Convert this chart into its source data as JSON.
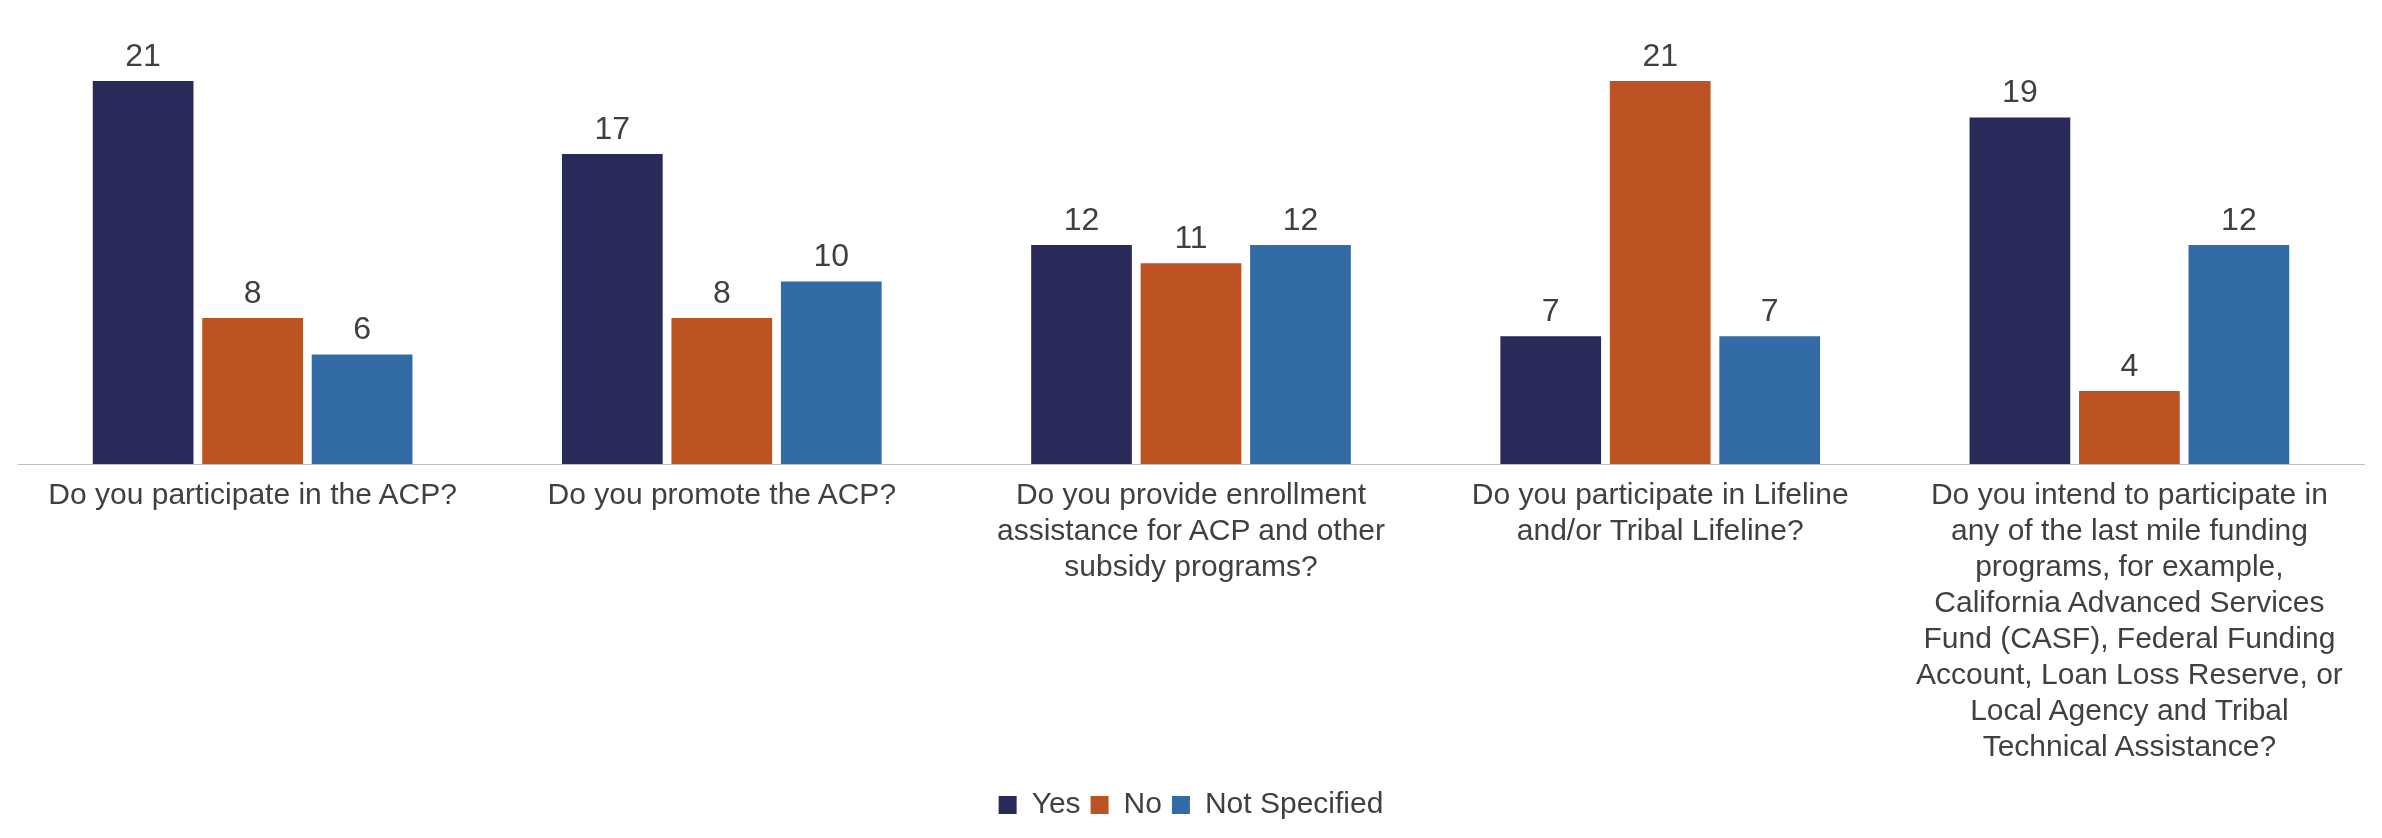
{
  "chart_data": {
    "type": "bar",
    "categories": [
      "Do you participate in the ACP?",
      "Do you promote the ACP?",
      "Do you provide enrollment assistance for ACP and other subsidy programs?",
      "Do you participate in Lifeline and/or Tribal Lifeline?",
      "Do you intend to participate in any of the last mile funding programs, for example, California Advanced Services Fund (CASF), Federal Funding Account, Loan Loss Reserve, or Local Agency and Tribal Technical Assistance?"
    ],
    "series": [
      {
        "name": "Yes",
        "color": "#29295a",
        "values": [
          21,
          17,
          12,
          7,
          19
        ]
      },
      {
        "name": "No",
        "color": "#bd5222",
        "values": [
          8,
          8,
          11,
          21,
          4
        ]
      },
      {
        "name": "Not Specified",
        "color": "#336ba6",
        "values": [
          6,
          10,
          12,
          7,
          12
        ]
      }
    ],
    "data_labels": true,
    "legend": "bottom",
    "grid": false
  }
}
